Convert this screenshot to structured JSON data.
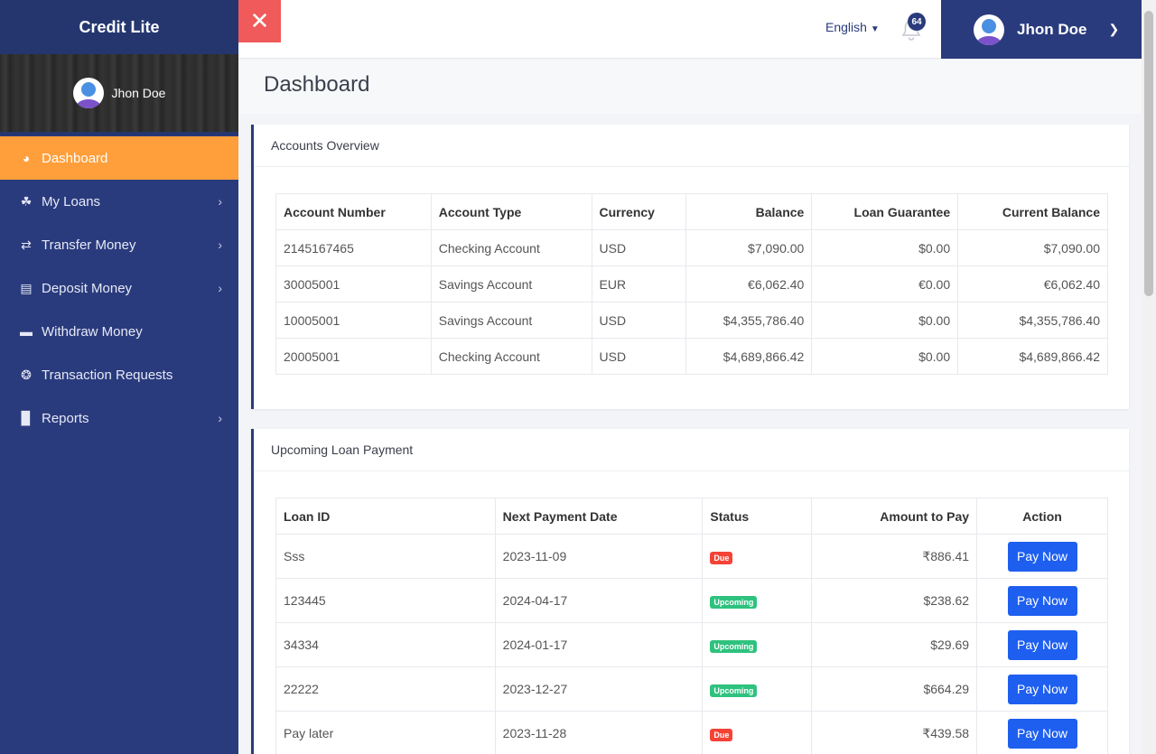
{
  "app": {
    "title": "Credit Lite"
  },
  "profile": {
    "name": "Jhon Doe"
  },
  "nav": [
    {
      "label": "Dashboard",
      "icon": "dashboard-icon",
      "active": true,
      "has_submenu": false
    },
    {
      "label": "My Loans",
      "icon": "hand-coin-icon",
      "active": false,
      "has_submenu": true
    },
    {
      "label": "Transfer Money",
      "icon": "exchange-icon",
      "active": false,
      "has_submenu": true
    },
    {
      "label": "Deposit Money",
      "icon": "money-stack-icon",
      "active": false,
      "has_submenu": true
    },
    {
      "label": "Withdraw Money",
      "icon": "credit-card-icon",
      "active": false,
      "has_submenu": false
    },
    {
      "label": "Transaction Requests",
      "icon": "life-ring-icon",
      "active": false,
      "has_submenu": false
    },
    {
      "label": "Reports",
      "icon": "bar-chart-icon",
      "active": false,
      "has_submenu": true
    }
  ],
  "topbar": {
    "language": "English",
    "notifications_count": "64",
    "user_name": "Jhon Doe"
  },
  "page": {
    "title": "Dashboard"
  },
  "accounts": {
    "title": "Accounts Overview",
    "columns": [
      "Account Number",
      "Account Type",
      "Currency",
      "Balance",
      "Loan Guarantee",
      "Current Balance"
    ],
    "rows": [
      [
        "2145167465",
        "Checking Account",
        "USD",
        "$7,090.00",
        "$0.00",
        "$7,090.00"
      ],
      [
        "30005001",
        "Savings Account",
        "EUR",
        "€6,062.40",
        "€0.00",
        "€6,062.40"
      ],
      [
        "10005001",
        "Savings Account",
        "USD",
        "$4,355,786.40",
        "$0.00",
        "$4,355,786.40"
      ],
      [
        "20005001",
        "Checking Account",
        "USD",
        "$4,689,866.42",
        "$0.00",
        "$4,689,866.42"
      ]
    ]
  },
  "loans": {
    "title": "Upcoming Loan Payment",
    "columns": [
      "Loan ID",
      "Next Payment Date",
      "Status",
      "Amount to Pay",
      "Action"
    ],
    "rows": [
      {
        "id": "Sss",
        "date": "2023-11-09",
        "status": "Due",
        "amount": "₹886.41",
        "action": "Pay Now"
      },
      {
        "id": "123445",
        "date": "2024-04-17",
        "status": "Upcoming",
        "amount": "$238.62",
        "action": "Pay Now"
      },
      {
        "id": "34334",
        "date": "2024-01-17",
        "status": "Upcoming",
        "amount": "$29.69",
        "action": "Pay Now"
      },
      {
        "id": "22222",
        "date": "2023-12-27",
        "status": "Upcoming",
        "amount": "$664.29",
        "action": "Pay Now"
      },
      {
        "id": "Pay later",
        "date": "2023-11-28",
        "status": "Due",
        "amount": "₹439.58",
        "action": "Pay Now"
      }
    ]
  },
  "colors": {
    "sidebar": "#2a3b7d",
    "active_nav": "#ff9f3b",
    "close": "#f05a5a",
    "pay_button": "#1e5ff0",
    "due_badge": "#f44336",
    "upcoming_badge": "#2ec27e"
  }
}
